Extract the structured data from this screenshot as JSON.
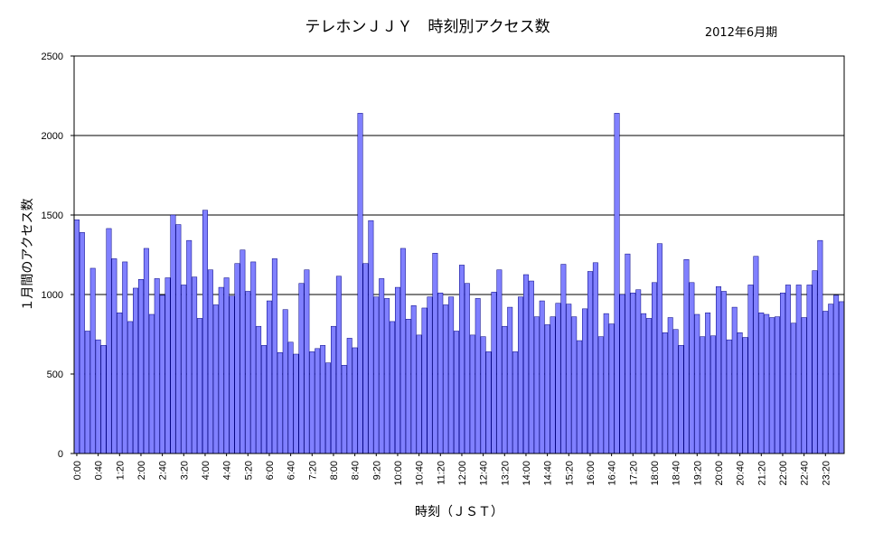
{
  "chart_data": {
    "type": "bar",
    "title": "テレホンＪＪＹ　時刻別アクセス数",
    "period": "2012年6月期",
    "xlabel": "時刻（ＪＳＴ）",
    "ylabel": "１月間のアクセス数",
    "ylim": [
      0,
      2500
    ],
    "yticks": [
      0,
      500,
      1000,
      1500,
      2000,
      2500
    ],
    "grid": "horizontal",
    "legend": "none",
    "colors": {
      "bar": "#8080ff",
      "bar_edge": "#000080",
      "grid": "#000000",
      "background": "#ffffff"
    },
    "tick_labels": [
      "0:00",
      "0:40",
      "1:20",
      "2:00",
      "2:40",
      "3:20",
      "4:00",
      "4:40",
      "5:20",
      "6:00",
      "6:40",
      "7:20",
      "8:00",
      "8:40",
      "9:20",
      "10:00",
      "10:40",
      "11:20",
      "12:00",
      "12:40",
      "13:20",
      "14:00",
      "14:40",
      "15:20",
      "16:00",
      "16:40",
      "17:20",
      "18:00",
      "18:40",
      "19:20",
      "20:00",
      "20:40",
      "21:20",
      "22:00",
      "22:40",
      "23:20"
    ],
    "values": [
      1470,
      1390,
      770,
      1165,
      715,
      680,
      1415,
      1225,
      885,
      1205,
      830,
      1040,
      1095,
      1290,
      875,
      1100,
      995,
      1105,
      1500,
      1440,
      1060,
      1340,
      1110,
      850,
      1530,
      1155,
      935,
      1045,
      1105,
      990,
      1195,
      1280,
      1020,
      1205,
      800,
      680,
      960,
      1225,
      635,
      905,
      700,
      625,
      1070,
      1155,
      640,
      660,
      680,
      570,
      800,
      1115,
      555,
      725,
      665,
      2140,
      1195,
      1465,
      985,
      1100,
      975,
      830,
      1045,
      1290,
      845,
      930,
      745,
      915,
      985,
      1260,
      1010,
      935,
      985,
      770,
      1185,
      1070,
      745,
      975,
      735,
      640,
      1015,
      1155,
      800,
      920,
      640,
      985,
      1125,
      1085,
      860,
      960,
      810,
      860,
      945,
      1190,
      940,
      860,
      710,
      910,
      1145,
      1200,
      735,
      880,
      815,
      2140,
      1000,
      1255,
      1010,
      1030,
      880,
      850,
      1075,
      1320,
      760,
      855,
      780,
      680,
      1220,
      1075,
      875,
      735,
      885,
      740,
      1050,
      1020,
      715,
      920,
      760,
      730,
      1060,
      1240,
      885,
      875,
      855,
      860,
      1010,
      1060,
      820,
      1060,
      855,
      1060,
      1150,
      1340,
      895,
      940,
      995,
      955
    ]
  }
}
